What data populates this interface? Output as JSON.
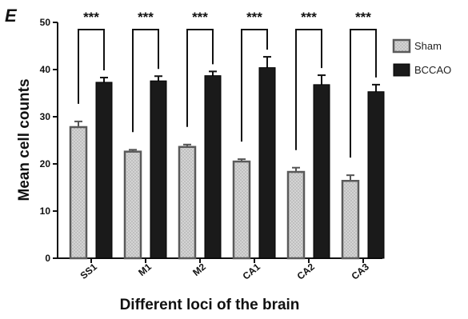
{
  "panel_label": "E",
  "chart_data": {
    "type": "bar",
    "categories": [
      "SS1",
      "M1",
      "M2",
      "CA1",
      "CA2",
      "CA3"
    ],
    "series": [
      {
        "name": "Sham",
        "values": [
          27.8,
          22.6,
          23.6,
          20.5,
          18.3,
          16.4
        ],
        "errors": [
          1.2,
          0.4,
          0.5,
          0.5,
          0.9,
          1.2
        ],
        "color": "#d0d0d0",
        "pattern": "dotted"
      },
      {
        "name": "BCCAO",
        "values": [
          37.3,
          37.6,
          38.7,
          40.4,
          36.8,
          35.3
        ],
        "errors": [
          1.0,
          1.0,
          0.9,
          2.3,
          2.0,
          1.5
        ],
        "color": "#1a1a1a",
        "pattern": "solid"
      }
    ],
    "significance": [
      "***",
      "***",
      "***",
      "***",
      "***",
      "***"
    ],
    "xlabel": "Different loci of the brain",
    "ylabel": "Mean cell counts",
    "ylim": [
      0,
      50
    ],
    "yticks": [
      "0",
      "10",
      "20",
      "30",
      "40",
      "50"
    ],
    "grid": false,
    "legend_position": "right"
  }
}
